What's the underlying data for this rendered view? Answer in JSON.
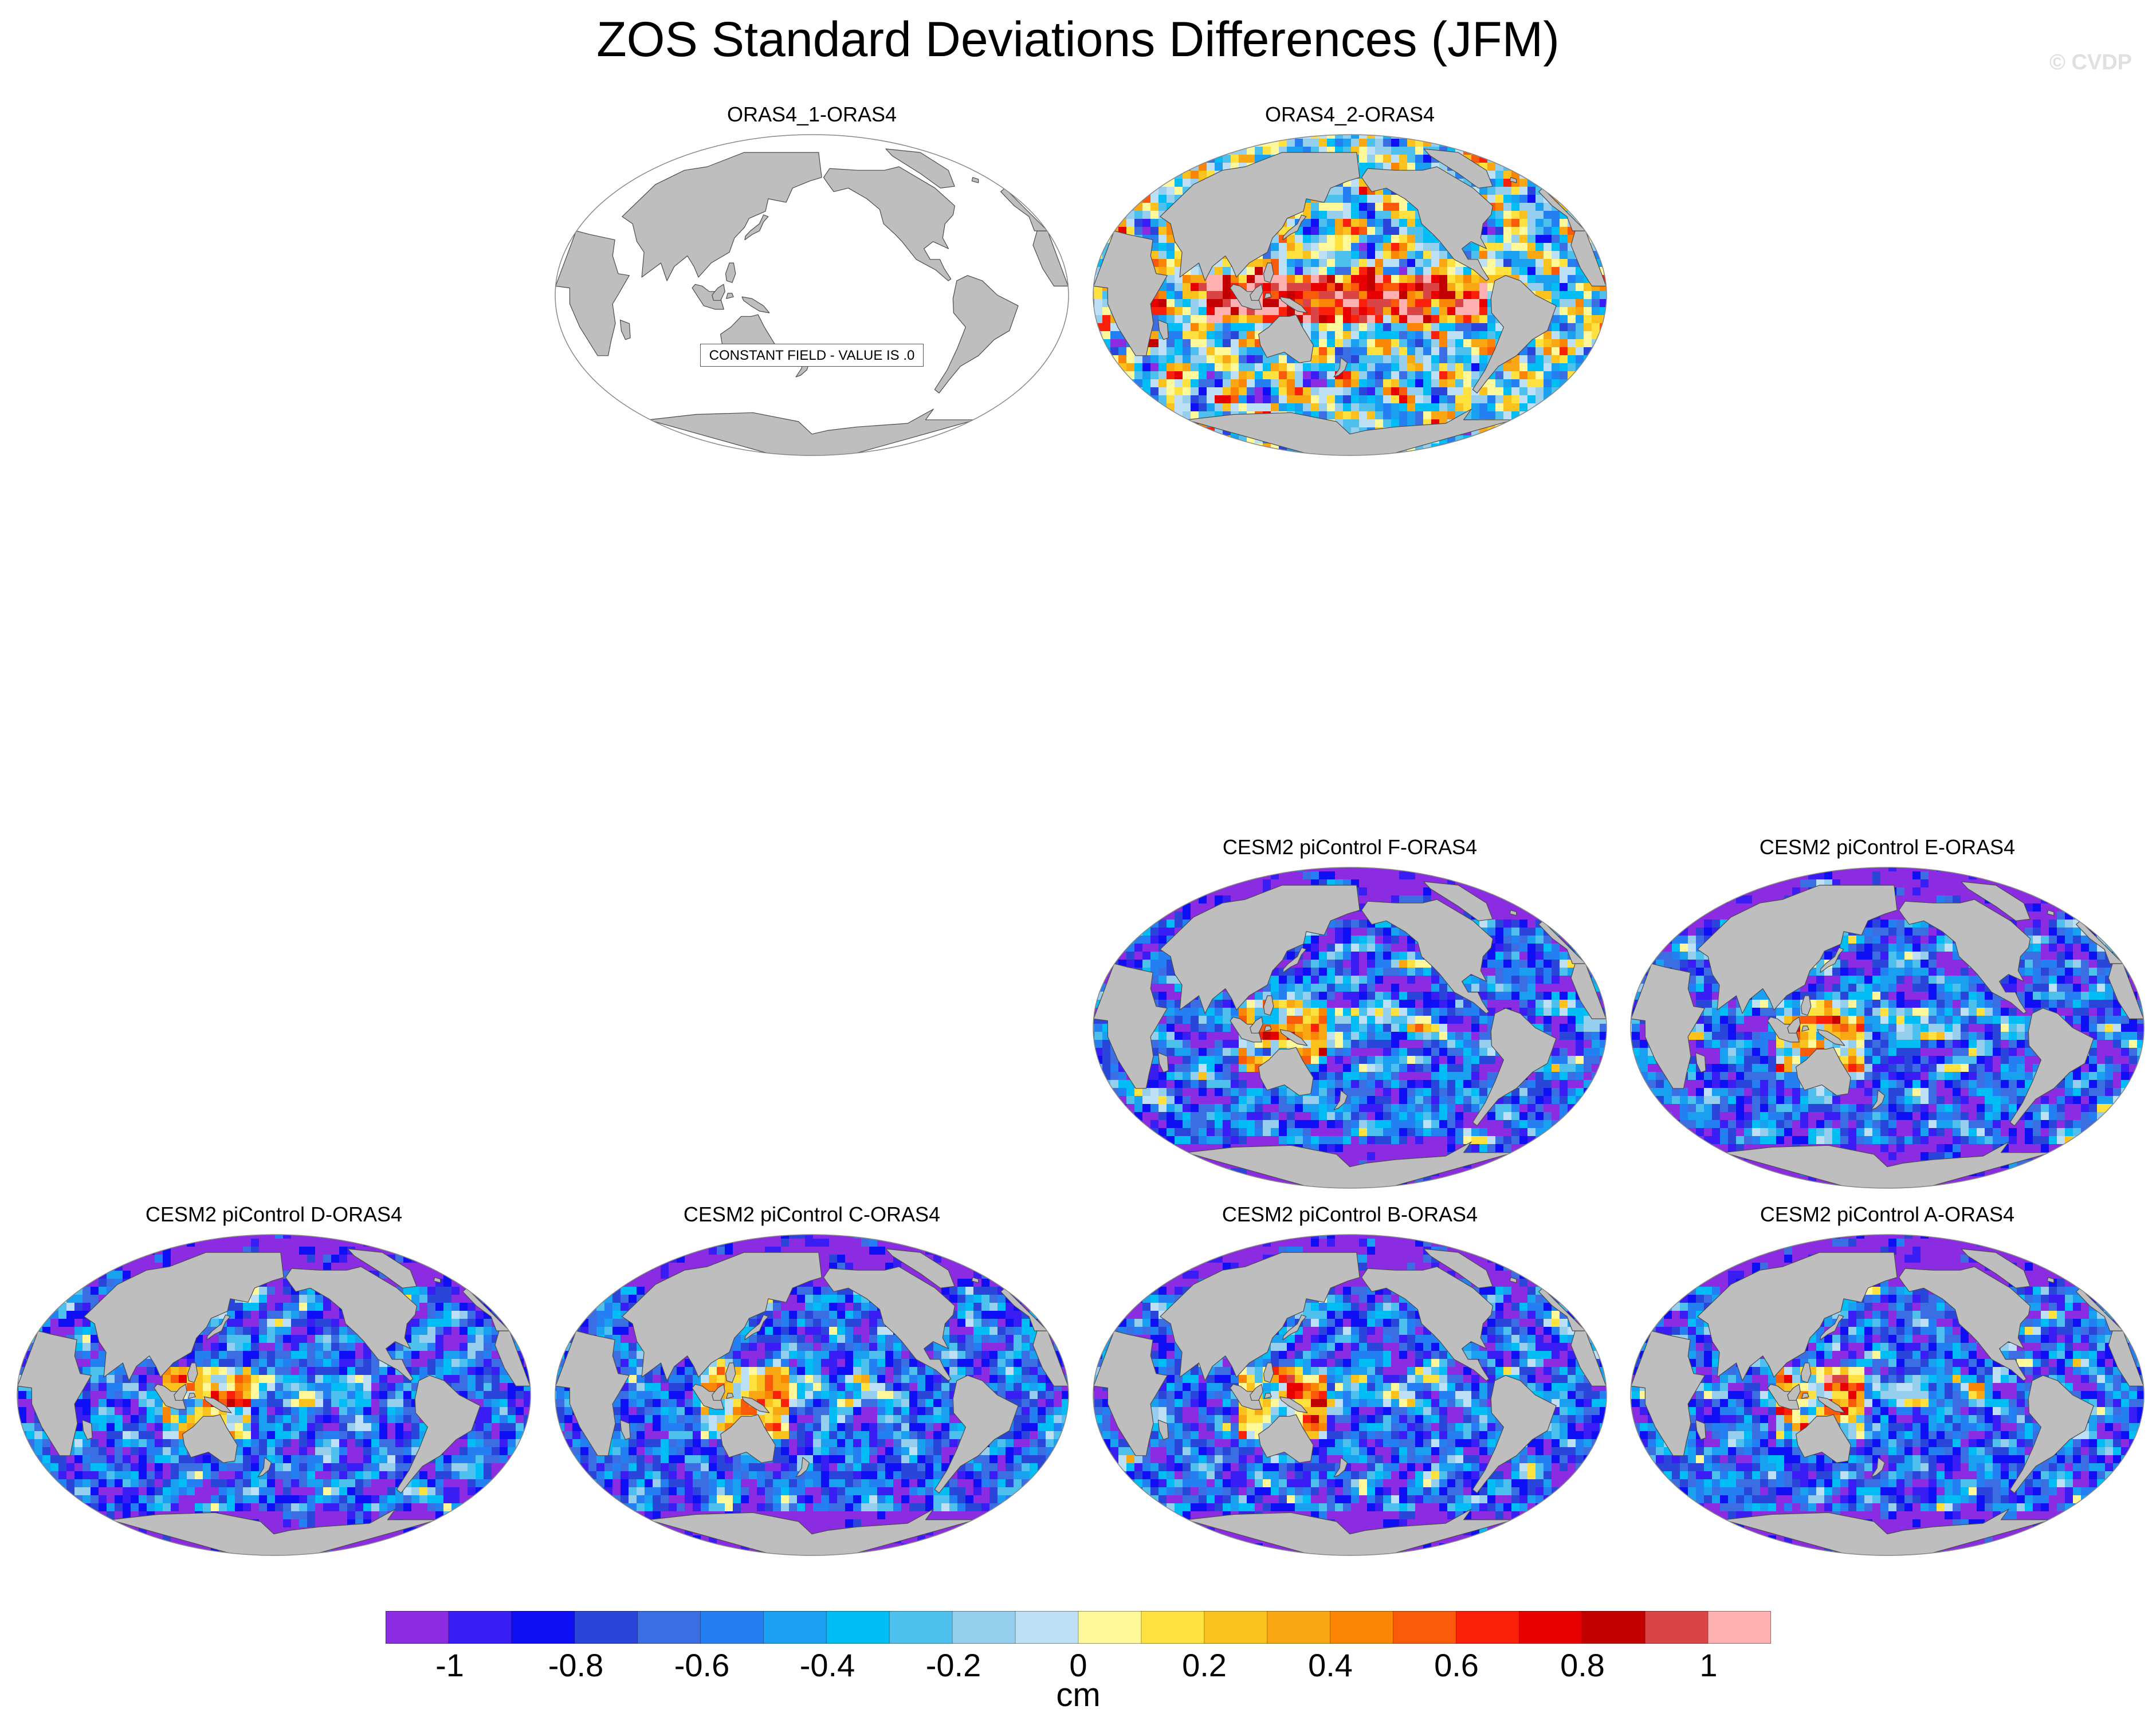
{
  "title": "ZOS Standard Deviations Differences (JFM)",
  "watermark": "© CVDP",
  "constant_field_label": "CONSTANT FIELD - VALUE IS .0",
  "colorbar": {
    "units": "cm",
    "ticks": [
      "-1",
      "-0.8",
      "-0.6",
      "-0.4",
      "-0.2",
      "0",
      "0.2",
      "0.4",
      "0.6",
      "0.8",
      "1"
    ],
    "colors": [
      "#8B2BE2",
      "#3A1CF5",
      "#0F0FF5",
      "#2A46DA",
      "#3A6EE2",
      "#2480F2",
      "#1AA0F0",
      "#00BEF5",
      "#4EC0EE",
      "#96CEEE",
      "#BEE0F7",
      "#FFF89A",
      "#FFE140",
      "#FBC21E",
      "#F9A712",
      "#FB8605",
      "#FB5A0B",
      "#FB200A",
      "#E80000",
      "#C20000",
      "#DB4444",
      "#FFB0B0"
    ]
  },
  "colors": {
    "land": "#BEBEBE",
    "ocean_empty": "#FFFFFF",
    "coastline": "#4A4A4A",
    "missing_ice": "#FFFFFF"
  },
  "panels": [
    {
      "title": "ORAS4_1-ORAS4",
      "style": "constant"
    },
    {
      "title": "ORAS4_2-ORAS4",
      "style": "mixed"
    },
    {
      "title": "CESM2 piControl F-ORAS4",
      "style": "low"
    },
    {
      "title": "CESM2 piControl E-ORAS4",
      "style": "low"
    },
    {
      "title": "CESM2 piControl D-ORAS4",
      "style": "low"
    },
    {
      "title": "CESM2 piControl C-ORAS4",
      "style": "low"
    },
    {
      "title": "CESM2 piControl B-ORAS4",
      "style": "low"
    },
    {
      "title": "CESM2 piControl A-ORAS4",
      "style": "low"
    }
  ]
}
